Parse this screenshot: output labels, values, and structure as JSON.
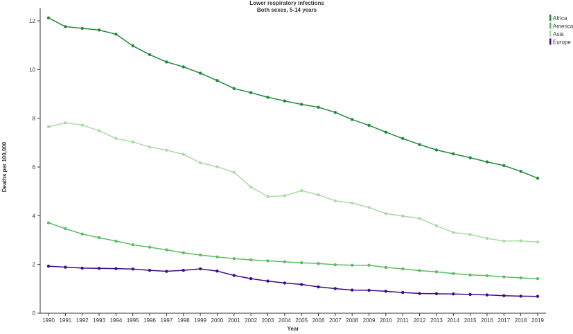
{
  "chart_data": {
    "type": "line",
    "title": "Lower respiratory infections",
    "subtitle": "Both sexes, 5-14 years",
    "xlabel": "Year",
    "ylabel": "Deaths per 100,000",
    "ylim": [
      0,
      12
    ],
    "yticks": [
      0,
      2,
      4,
      6,
      8,
      10,
      12
    ],
    "grid": false,
    "legend_position": "top-right",
    "x": [
      1990,
      1991,
      1992,
      1993,
      1994,
      1995,
      1996,
      1997,
      1998,
      1999,
      2000,
      2001,
      2002,
      2003,
      2004,
      2005,
      2006,
      2007,
      2008,
      2009,
      2010,
      2011,
      2012,
      2013,
      2014,
      2015,
      2016,
      2017,
      2018,
      2019
    ],
    "series": [
      {
        "name": "Africa",
        "color": "#1e8a3c",
        "values": [
          12.12,
          11.76,
          11.69,
          11.62,
          11.45,
          10.97,
          10.61,
          10.31,
          10.11,
          9.85,
          9.55,
          9.22,
          9.05,
          8.86,
          8.71,
          8.57,
          8.45,
          8.24,
          7.95,
          7.71,
          7.43,
          7.17,
          6.92,
          6.7,
          6.54,
          6.38,
          6.21,
          6.06,
          5.82,
          5.54
        ]
      },
      {
        "name": "America",
        "color": "#5cbd63",
        "values": [
          3.71,
          3.47,
          3.25,
          3.1,
          2.96,
          2.81,
          2.71,
          2.6,
          2.48,
          2.39,
          2.31,
          2.24,
          2.19,
          2.15,
          2.11,
          2.07,
          2.04,
          1.99,
          1.97,
          1.97,
          1.88,
          1.82,
          1.75,
          1.7,
          1.63,
          1.57,
          1.54,
          1.49,
          1.45,
          1.42
        ]
      },
      {
        "name": "Asia",
        "color": "#a8dda0",
        "values": [
          7.65,
          7.81,
          7.72,
          7.49,
          7.17,
          7.03,
          6.82,
          6.69,
          6.52,
          6.17,
          6.01,
          5.78,
          5.18,
          4.79,
          4.82,
          5.03,
          4.86,
          4.61,
          4.52,
          4.34,
          4.09,
          3.99,
          3.89,
          3.59,
          3.31,
          3.23,
          3.07,
          2.96,
          2.97,
          2.92
        ]
      },
      {
        "name": "Europe",
        "color": "#3f0a85",
        "values": [
          1.93,
          1.89,
          1.85,
          1.84,
          1.83,
          1.81,
          1.76,
          1.72,
          1.76,
          1.82,
          1.73,
          1.55,
          1.42,
          1.32,
          1.24,
          1.18,
          1.08,
          1.01,
          0.95,
          0.94,
          0.9,
          0.85,
          0.81,
          0.8,
          0.79,
          0.77,
          0.75,
          0.72,
          0.7,
          0.69
        ]
      }
    ]
  }
}
